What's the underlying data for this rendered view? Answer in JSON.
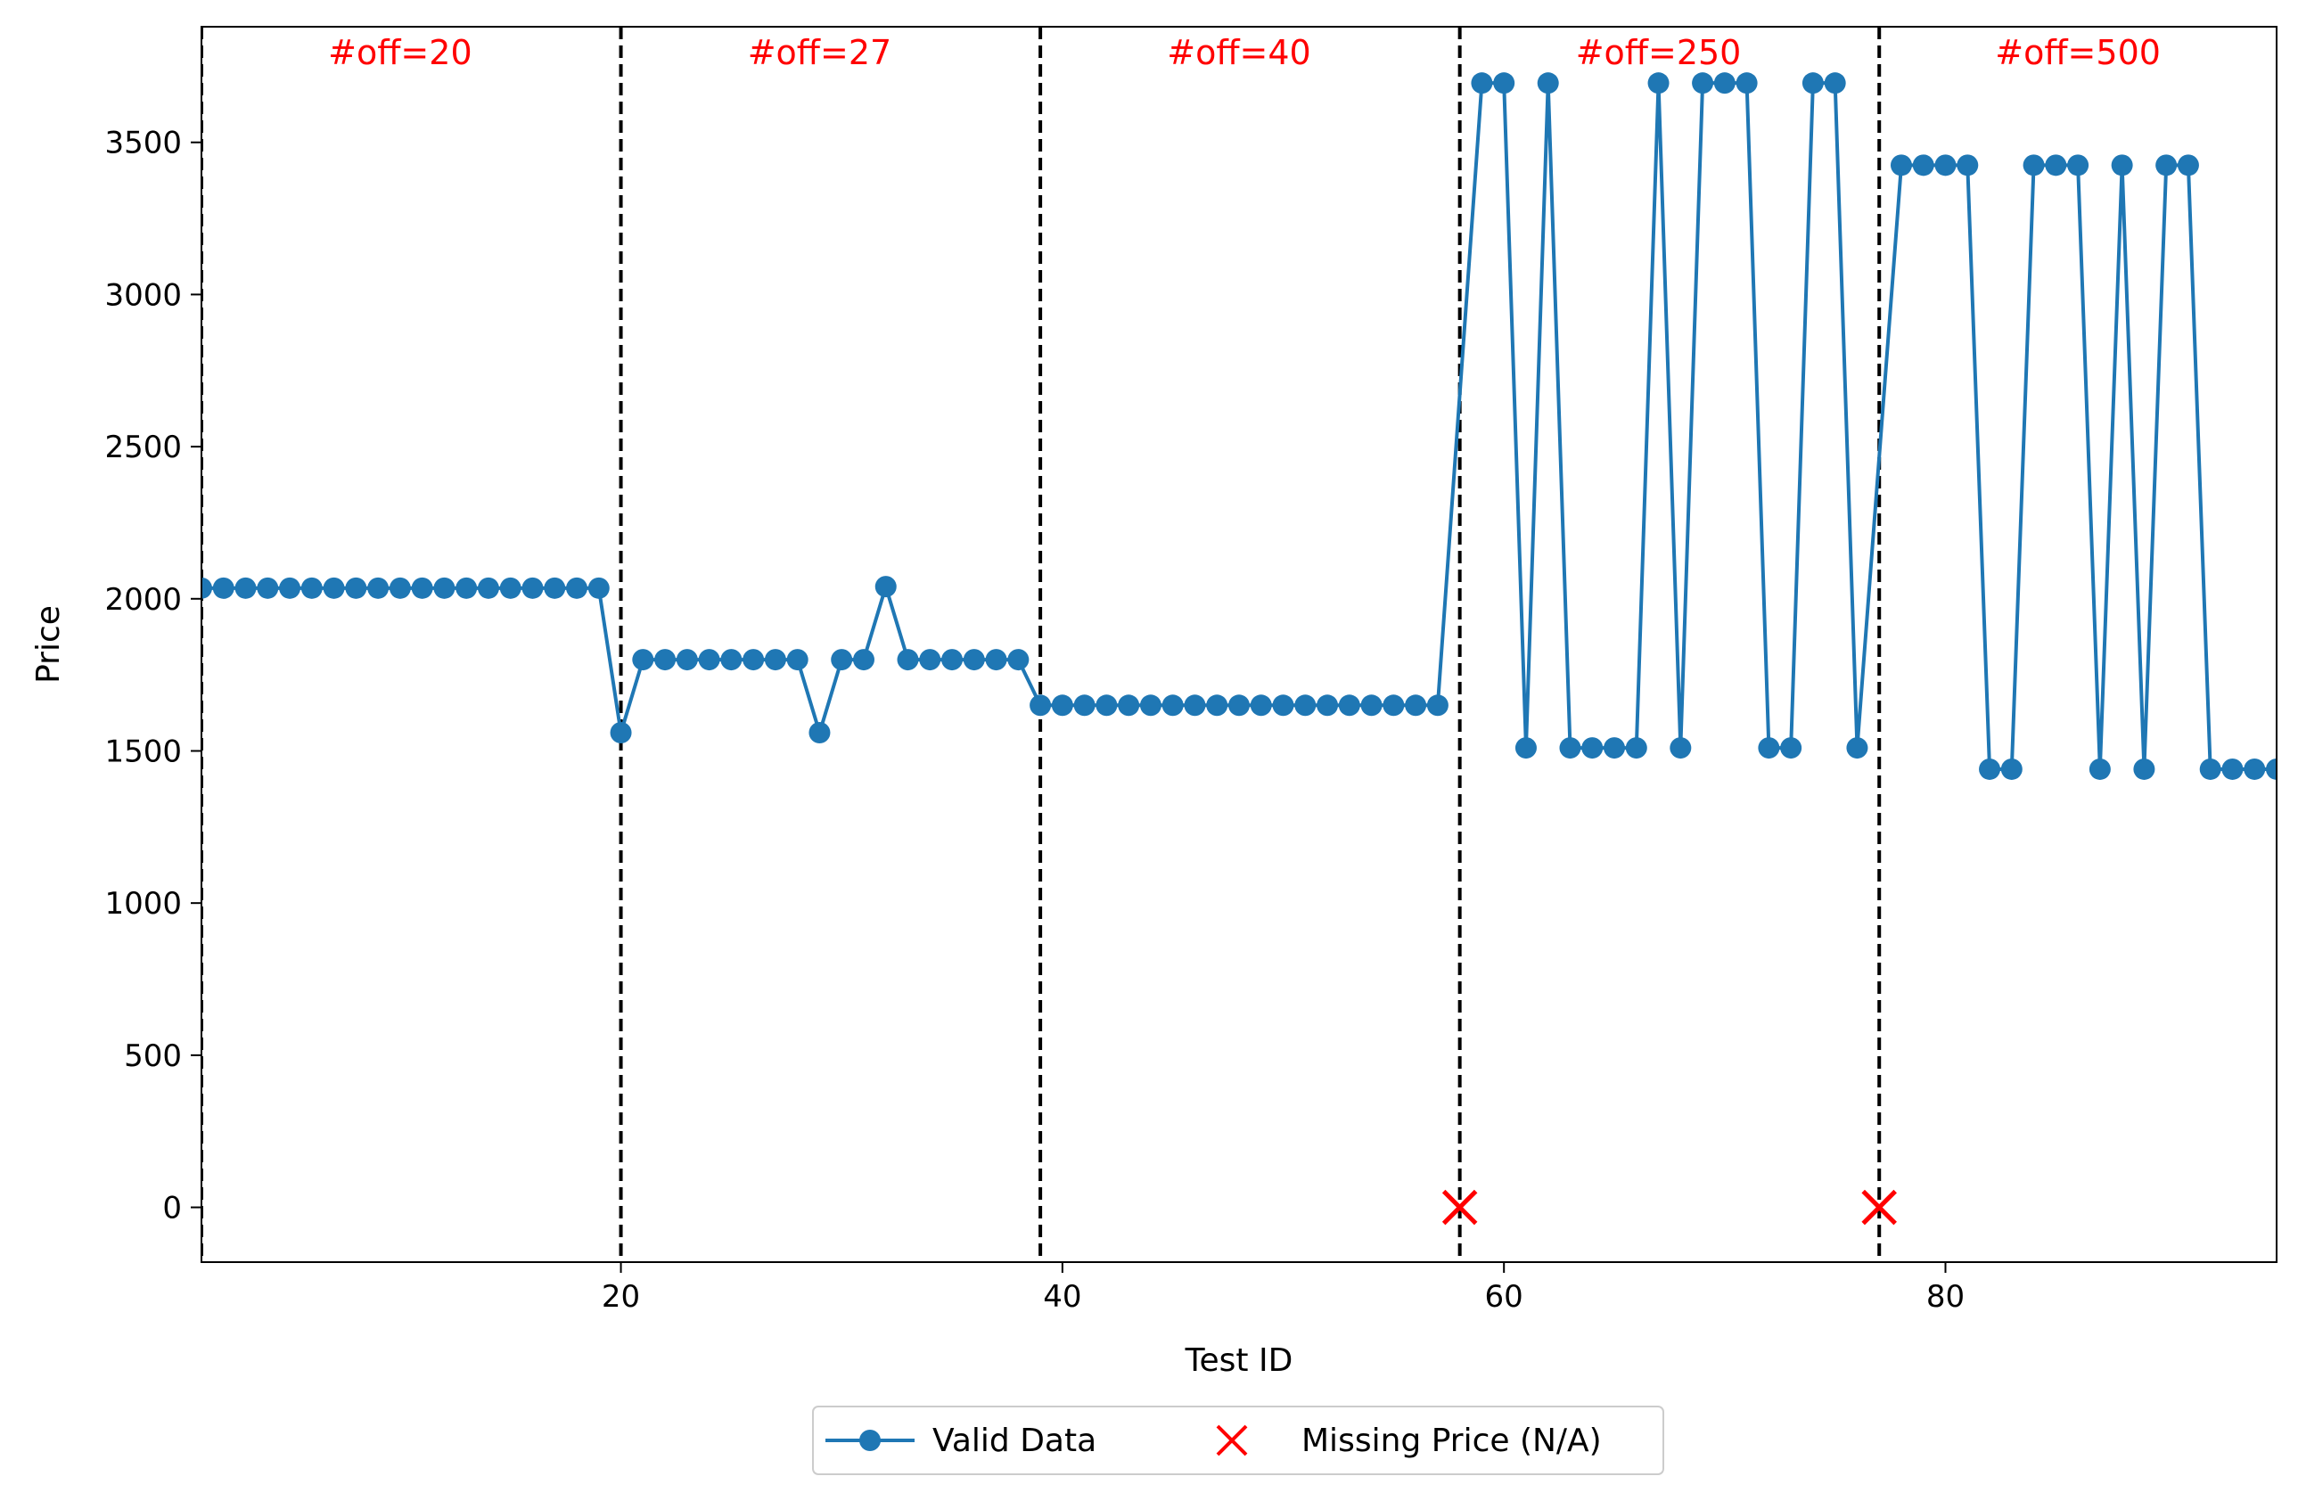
{
  "chart_data": {
    "type": "line",
    "title": "",
    "xlabel": "Test ID",
    "ylabel": "Price",
    "xlim": [
      1,
      95
    ],
    "ylim": [
      -180,
      3880
    ],
    "x_ticks": [
      20,
      40,
      60,
      80
    ],
    "y_ticks": [
      0,
      500,
      1000,
      1500,
      2000,
      2500,
      3000,
      3500
    ],
    "grid": false,
    "legend_position": "bottom-center",
    "series": [
      {
        "name": "Valid Data",
        "color": "#1f77b4",
        "marker": "circle",
        "x": [
          1,
          2,
          3,
          4,
          5,
          6,
          7,
          8,
          9,
          10,
          11,
          12,
          13,
          14,
          15,
          16,
          17,
          18,
          19,
          20,
          21,
          22,
          23,
          24,
          25,
          26,
          27,
          28,
          29,
          30,
          31,
          32,
          33,
          34,
          35,
          36,
          37,
          38,
          39,
          40,
          41,
          42,
          43,
          44,
          45,
          46,
          47,
          48,
          49,
          50,
          51,
          52,
          53,
          54,
          55,
          56,
          57,
          59,
          60,
          61,
          62,
          63,
          64,
          65,
          66,
          67,
          68,
          69,
          70,
          71,
          72,
          73,
          74,
          75,
          76,
          78,
          79,
          80,
          81,
          82,
          83,
          84,
          85,
          86,
          87,
          88,
          89,
          90,
          91,
          92,
          93,
          94,
          95
        ],
        "y": [
          2035,
          2035,
          2035,
          2035,
          2035,
          2035,
          2035,
          2035,
          2035,
          2035,
          2035,
          2035,
          2035,
          2035,
          2035,
          2035,
          2035,
          2035,
          2035,
          1560,
          1800,
          1800,
          1800,
          1800,
          1800,
          1800,
          1800,
          1800,
          1560,
          1800,
          1800,
          2040,
          1800,
          1800,
          1800,
          1800,
          1800,
          1800,
          1650,
          1650,
          1650,
          1650,
          1650,
          1650,
          1650,
          1650,
          1650,
          1650,
          1650,
          1650,
          1650,
          1650,
          1650,
          1650,
          1650,
          1650,
          1650,
          3695,
          3695,
          1510,
          3695,
          1510,
          1510,
          1510,
          1510,
          3695,
          1510,
          3695,
          3695,
          3695,
          1510,
          1510,
          3695,
          3695,
          1510,
          3425,
          3425,
          3425,
          3425,
          1440,
          1440,
          3425,
          3425,
          3425,
          1440,
          3425,
          1440,
          3425,
          3425,
          1440,
          1440,
          1440,
          1440
        ]
      },
      {
        "name": "Missing Price (N/A)",
        "color": "#ff0000",
        "marker": "x",
        "x": [
          58,
          77
        ],
        "y": [
          0,
          0
        ]
      }
    ],
    "dividers": [
      1,
      20,
      39,
      58,
      77
    ],
    "regions": [
      {
        "label": "#off=20",
        "x_center": 10
      },
      {
        "label": "#off=27",
        "x_center": 29
      },
      {
        "label": "#off=40",
        "x_center": 48
      },
      {
        "label": "#off=250",
        "x_center": 67
      },
      {
        "label": "#off=500",
        "x_center": 86
      }
    ]
  }
}
